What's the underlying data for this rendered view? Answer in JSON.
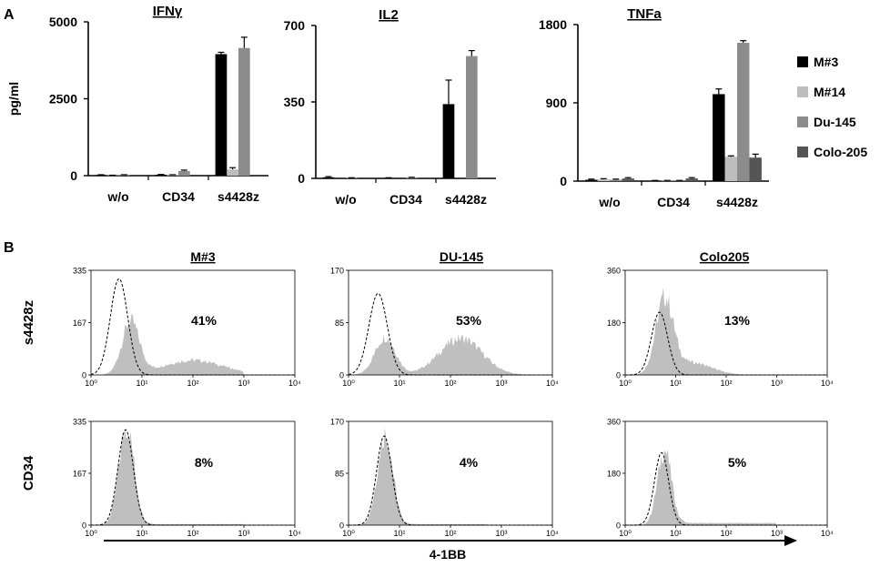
{
  "panels": {
    "a": "A",
    "b": "B"
  },
  "chart_data": [
    {
      "type": "bar",
      "title": "IFNγ",
      "ylabel": "pg/ml",
      "xlabel": "",
      "ylim": [
        0,
        5000
      ],
      "yticks": [
        "0",
        "2500",
        "5000"
      ],
      "categories": [
        "w/o",
        "CD34",
        "s4428z"
      ],
      "series": [
        {
          "name": "M#3",
          "values": [
            20,
            30,
            3950
          ],
          "errors": [
            10,
            10,
            60
          ]
        },
        {
          "name": "M#14",
          "values": [
            10,
            20,
            200
          ],
          "errors": [
            5,
            10,
            60
          ]
        },
        {
          "name": "Du-145",
          "values": [
            20,
            150,
            4150
          ],
          "errors": [
            10,
            30,
            350
          ]
        },
        {
          "name": "Colo-205",
          "values": [
            0,
            0,
            0
          ],
          "errors": [
            0,
            0,
            0
          ]
        }
      ]
    },
    {
      "type": "bar",
      "title": "IL2",
      "ylabel": "",
      "xlabel": "",
      "ylim": [
        0,
        700
      ],
      "yticks": [
        "0",
        "350",
        "700"
      ],
      "categories": [
        "w/o",
        "CD34",
        "s4428z"
      ],
      "series": [
        {
          "name": "M#3",
          "values": [
            5,
            2,
            340
          ],
          "errors": [
            3,
            1,
            110
          ]
        },
        {
          "name": "M#14",
          "values": [
            0,
            0,
            0
          ],
          "errors": [
            0,
            0,
            0
          ]
        },
        {
          "name": "Du-145",
          "values": [
            2,
            3,
            560
          ],
          "errors": [
            1,
            2,
            25
          ]
        },
        {
          "name": "Colo-205",
          "values": [
            0,
            0,
            0
          ],
          "errors": [
            0,
            0,
            0
          ]
        }
      ]
    },
    {
      "type": "bar",
      "title": "TNFa",
      "ylabel": "",
      "xlabel": "",
      "ylim": [
        0,
        1800
      ],
      "yticks": [
        "0",
        "900",
        "1800"
      ],
      "categories": [
        "w/o",
        "CD34",
        "s4428z"
      ],
      "series": [
        {
          "name": "M#3",
          "values": [
            15,
            5,
            1000
          ],
          "errors": [
            8,
            3,
            60
          ]
        },
        {
          "name": "M#14",
          "values": [
            20,
            5,
            280
          ],
          "errors": [
            8,
            3,
            10
          ]
        },
        {
          "name": "Du-145",
          "values": [
            15,
            5,
            1590
          ],
          "errors": [
            8,
            3,
            25
          ]
        },
        {
          "name": "Colo-205",
          "values": [
            30,
            30,
            270
          ],
          "errors": [
            10,
            10,
            40
          ]
        }
      ]
    },
    {
      "type": "histogram-grid",
      "xlabel": "4-1BB",
      "xticks": [
        "10⁰",
        "10¹",
        "10²",
        "10³",
        "10⁴"
      ],
      "columns": [
        "M#3",
        "DU-145",
        "Colo205"
      ],
      "rows": [
        "s4428z",
        "CD34"
      ],
      "ymax": [
        "335",
        "170",
        "360"
      ],
      "ymid": [
        "167",
        "85",
        "180"
      ],
      "ymin": "0",
      "percentages": [
        [
          "41%",
          "53%",
          "13%"
        ],
        [
          "8%",
          "4%",
          "5%"
        ]
      ]
    }
  ],
  "legend": [
    {
      "name": "M#3",
      "color": "#000000"
    },
    {
      "name": "M#14",
      "color": "#bdbdbd"
    },
    {
      "name": "Du-145",
      "color": "#8c8c8c"
    },
    {
      "name": "Colo-205",
      "color": "#555555"
    }
  ]
}
